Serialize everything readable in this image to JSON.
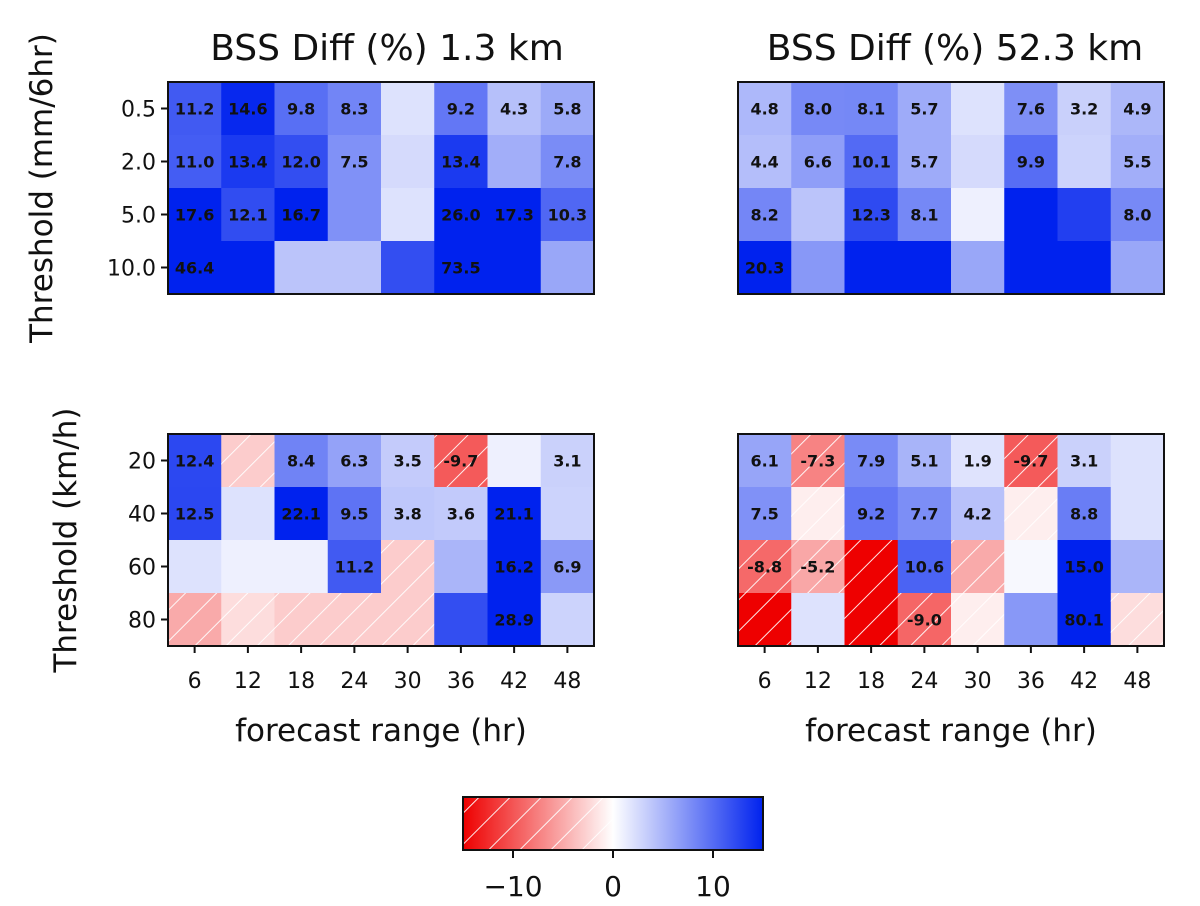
{
  "chart_data": {
    "type": "heatmap",
    "colorbar": {
      "min": -15,
      "max": 15,
      "ticks": [
        "−10",
        "0",
        "10"
      ],
      "tick_values": [
        -10,
        0,
        10
      ],
      "colors": {
        "negative": "#ee0000",
        "zero": "#ffffff",
        "positive": "#0022ee"
      },
      "hatch_negative": true
    },
    "x_ticks": [
      "6",
      "12",
      "18",
      "24",
      "30",
      "36",
      "42",
      "48"
    ],
    "xlabel": "forecast range (hr)",
    "panels": [
      {
        "title": "BSS Diff (%) 1.3 km",
        "ylabel": "Threshold (mm/6hr)",
        "y_ticks": [
          "0.5",
          "2.0",
          "5.0",
          "10.0"
        ],
        "values": [
          [
            11.2,
            14.6,
            9.8,
            8.3,
            2,
            9.2,
            4.3,
            5.8
          ],
          [
            11.0,
            13.4,
            12.0,
            7.5,
            2.5,
            13.4,
            5.5,
            7.8
          ],
          [
            17.6,
            12.1,
            16.7,
            7.5,
            2,
            26.0,
            17.3,
            10.3
          ],
          [
            46.4,
            30,
            4,
            4,
            12,
            73.5,
            30,
            6
          ]
        ],
        "labels": [
          [
            "11.2",
            "14.6",
            "9.8",
            "8.3",
            "",
            "9.2",
            "4.3",
            "5.8"
          ],
          [
            "11.0",
            "13.4",
            "12.0",
            "7.5",
            "",
            "13.4",
            "",
            "7.8"
          ],
          [
            "17.6",
            "12.1",
            "16.7",
            "",
            "",
            "26.0",
            "17.3",
            "10.3"
          ],
          [
            "46.4",
            "",
            "",
            "",
            "",
            "73.5",
            "",
            ""
          ]
        ]
      },
      {
        "title": "BSS Diff (%) 52.3 km",
        "ylabel": "",
        "y_ticks": [],
        "values": [
          [
            4.8,
            8.0,
            8.1,
            5.7,
            2,
            7.6,
            3.2,
            4.9
          ],
          [
            4.4,
            6.6,
            10.1,
            5.7,
            2.5,
            9.9,
            3,
            5.5
          ],
          [
            8.2,
            4,
            12.3,
            8.1,
            1,
            30,
            13,
            8.0
          ],
          [
            20.3,
            7,
            30,
            30,
            6,
            30,
            30,
            6
          ]
        ],
        "labels": [
          [
            "4.8",
            "8.0",
            "8.1",
            "5.7",
            "",
            "7.6",
            "3.2",
            "4.9"
          ],
          [
            "4.4",
            "6.6",
            "10.1",
            "5.7",
            "",
            "9.9",
            "",
            "5.5"
          ],
          [
            "8.2",
            "",
            "12.3",
            "8.1",
            "",
            "",
            "",
            "8.0"
          ],
          [
            "20.3",
            "",
            "",
            "",
            "",
            "",
            "",
            ""
          ]
        ]
      },
      {
        "title": "",
        "ylabel": "Threshold (km/h)",
        "y_ticks": [
          "20",
          "40",
          "60",
          "80"
        ],
        "values": [
          [
            12.4,
            -3,
            8.4,
            6.3,
            3.5,
            -9.7,
            1,
            3.1
          ],
          [
            12.5,
            2,
            22.1,
            9.5,
            3.8,
            3.6,
            21.1,
            3
          ],
          [
            2,
            1,
            1,
            11.2,
            -3,
            5,
            16.2,
            6.9
          ],
          [
            -5,
            -2,
            -3,
            -3,
            -3,
            12,
            28.9,
            3
          ]
        ],
        "labels": [
          [
            "12.4",
            "",
            "8.4",
            "6.3",
            "3.5",
            "-9.7",
            "",
            "3.1"
          ],
          [
            "12.5",
            "",
            "22.1",
            "9.5",
            "3.8",
            "3.6",
            "21.1",
            ""
          ],
          [
            "",
            "",
            "",
            "11.2",
            "",
            "",
            "16.2",
            "6.9"
          ],
          [
            "",
            "",
            "",
            "",
            "",
            "",
            "28.9",
            ""
          ]
        ]
      },
      {
        "title": "",
        "ylabel": "",
        "y_ticks": [],
        "values": [
          [
            6.1,
            -7.3,
            7.9,
            5.1,
            1.9,
            -9.7,
            3.1,
            2
          ],
          [
            7.5,
            -1,
            9.2,
            7.7,
            4.2,
            -1,
            8.8,
            2
          ],
          [
            -8.8,
            -5.2,
            -15,
            10.6,
            -5,
            0.5,
            15.0,
            5
          ],
          [
            -15,
            2,
            -15,
            -9.0,
            -1,
            7,
            80.1,
            -2
          ]
        ],
        "labels": [
          [
            "6.1",
            "-7.3",
            "7.9",
            "5.1",
            "1.9",
            "-9.7",
            "3.1",
            ""
          ],
          [
            "7.5",
            "",
            "9.2",
            "7.7",
            "4.2",
            "",
            "8.8",
            ""
          ],
          [
            "-8.8",
            "-5.2",
            "",
            "10.6",
            "",
            "",
            "15.0",
            ""
          ],
          [
            "",
            "",
            "",
            "-9.0",
            "",
            "",
            "80.1",
            ""
          ]
        ]
      }
    ]
  }
}
